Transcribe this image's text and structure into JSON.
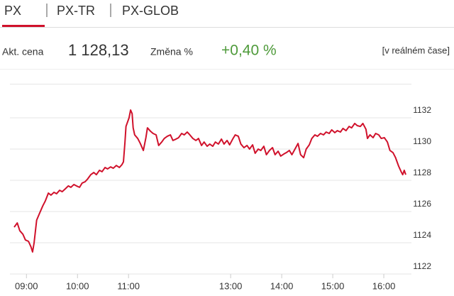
{
  "tabs": [
    "PX",
    "PX-TR",
    "PX-GLOB"
  ],
  "info": {
    "price_label": "Akt. cena",
    "price": "1 128,13",
    "change_label": "Změna %",
    "change": "+0,40 %",
    "realtime": "[v reálném čase]"
  },
  "chart_data": {
    "type": "line",
    "color": "#d0112b",
    "grid": true,
    "xlim": [
      8.76,
      16.43
    ],
    "ylim": [
      1122,
      1134
    ],
    "xticks": [
      {
        "value": 9,
        "label": "09:00"
      },
      {
        "value": 10,
        "label": "10:00"
      },
      {
        "value": 11,
        "label": "11:00"
      },
      {
        "value": 13,
        "label": "13:00"
      },
      {
        "value": 14,
        "label": "14:00"
      },
      {
        "value": 15,
        "label": "15:00"
      },
      {
        "value": 16,
        "label": "16:00"
      }
    ],
    "yticks": [
      1122,
      1124,
      1126,
      1128,
      1130,
      1132
    ],
    "x": [
      8.76,
      8.82,
      8.87,
      8.93,
      8.98,
      9.04,
      9.09,
      9.12,
      9.15,
      9.2,
      9.26,
      9.32,
      9.37,
      9.43,
      9.48,
      9.54,
      9.59,
      9.65,
      9.7,
      9.76,
      9.82,
      9.87,
      9.93,
      9.98,
      10.04,
      10.09,
      10.15,
      10.2,
      10.26,
      10.32,
      10.37,
      10.43,
      10.48,
      10.54,
      10.59,
      10.65,
      10.7,
      10.76,
      10.82,
      10.87,
      10.9,
      10.93,
      10.95,
      11.01,
      11.04,
      11.07,
      11.09,
      11.12,
      11.18,
      11.23,
      11.29,
      11.34,
      11.37,
      11.43,
      11.48,
      11.54,
      11.59,
      11.65,
      11.7,
      11.76,
      11.82,
      11.87,
      11.93,
      11.98,
      12.04,
      12.09,
      12.15,
      12.2,
      12.26,
      12.32,
      12.37,
      12.43,
      12.48,
      12.54,
      12.59,
      12.65,
      12.7,
      12.76,
      12.82,
      12.87,
      12.93,
      12.98,
      13.04,
      13.09,
      13.15,
      13.2,
      13.26,
      13.32,
      13.37,
      13.43,
      13.48,
      13.54,
      13.59,
      13.65,
      13.7,
      13.76,
      13.82,
      13.87,
      13.93,
      13.98,
      14.04,
      14.09,
      14.15,
      14.2,
      14.26,
      14.32,
      14.37,
      14.43,
      14.48,
      14.54,
      14.59,
      14.65,
      14.7,
      14.76,
      14.82,
      14.87,
      14.93,
      14.98,
      15.04,
      15.09,
      15.15,
      15.2,
      15.26,
      15.32,
      15.37,
      15.43,
      15.48,
      15.54,
      15.59,
      15.65,
      15.68,
      15.73,
      15.79,
      15.84,
      15.9,
      15.95,
      16.01,
      16.07,
      16.12,
      16.18,
      16.23,
      16.29,
      16.34,
      16.37,
      16.4,
      16.43
    ],
    "values": [
      1125.0,
      1125.27,
      1124.77,
      1124.55,
      1124.18,
      1124.09,
      1123.73,
      1123.41,
      1124.0,
      1125.45,
      1125.91,
      1126.36,
      1126.68,
      1127.18,
      1127.05,
      1127.23,
      1127.14,
      1127.36,
      1127.27,
      1127.45,
      1127.64,
      1127.55,
      1127.73,
      1127.64,
      1127.55,
      1127.82,
      1127.91,
      1128.09,
      1128.36,
      1128.5,
      1128.36,
      1128.64,
      1128.55,
      1128.82,
      1128.73,
      1128.86,
      1128.77,
      1128.95,
      1128.82,
      1129.0,
      1129.18,
      1130.45,
      1131.45,
      1132.0,
      1132.5,
      1132.27,
      1131.36,
      1130.91,
      1130.68,
      1130.36,
      1129.91,
      1130.73,
      1131.36,
      1131.14,
      1131.0,
      1130.91,
      1130.23,
      1130.45,
      1130.68,
      1130.82,
      1130.91,
      1130.55,
      1130.64,
      1130.73,
      1131.0,
      1130.91,
      1131.09,
      1130.91,
      1130.68,
      1130.55,
      1130.68,
      1130.23,
      1130.45,
      1130.18,
      1130.32,
      1130.18,
      1130.45,
      1130.32,
      1130.64,
      1130.32,
      1130.55,
      1130.27,
      1130.64,
      1130.91,
      1130.82,
      1130.32,
      1130.09,
      1130.23,
      1130.0,
      1130.27,
      1129.73,
      1130.0,
      1129.91,
      1130.18,
      1129.64,
      1129.91,
      1130.09,
      1129.64,
      1129.86,
      1129.55,
      1129.68,
      1129.77,
      1129.91,
      1129.64,
      1130.0,
      1130.36,
      1129.64,
      1129.45,
      1130.0,
      1130.27,
      1130.68,
      1130.91,
      1130.82,
      1131.0,
      1130.91,
      1131.09,
      1131.0,
      1131.23,
      1131.05,
      1131.18,
      1131.09,
      1131.32,
      1131.18,
      1131.45,
      1131.36,
      1131.64,
      1131.5,
      1131.45,
      1131.64,
      1131.27,
      1130.68,
      1130.91,
      1130.73,
      1131.0,
      1130.91,
      1130.68,
      1130.73,
      1130.45,
      1129.91,
      1129.77,
      1129.45,
      1128.91,
      1128.55,
      1128.36,
      1128.64,
      1128.36
    ]
  }
}
